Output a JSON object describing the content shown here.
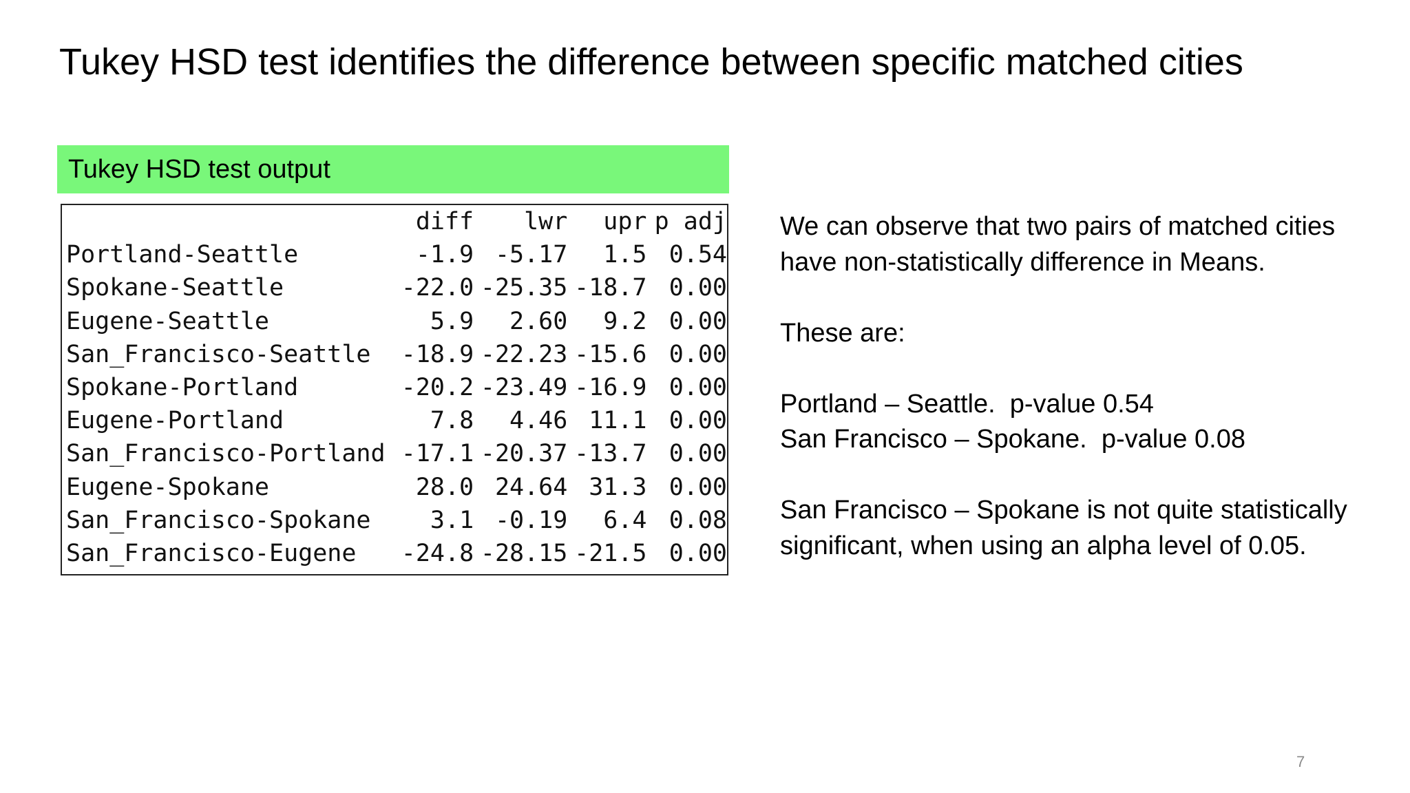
{
  "slide": {
    "title": "Tukey HSD test identifies the difference between specific matched cities",
    "page_number": "7"
  },
  "output_panel": {
    "header": "Tukey HSD test output",
    "header_color": "#79f77a",
    "columns": [
      "",
      "diff",
      "lwr",
      "upr",
      "p adj"
    ],
    "rows": [
      [
        "Portland-Seattle",
        "-1.9",
        "-5.17",
        "1.5",
        "0.54"
      ],
      [
        "Spokane-Seattle",
        "-22.0",
        "-25.35",
        "-18.7",
        "0.00"
      ],
      [
        "Eugene-Seattle",
        "5.9",
        "2.60",
        "9.2",
        "0.00"
      ],
      [
        "San_Francisco-Seattle",
        "-18.9",
        "-22.23",
        "-15.6",
        "0.00"
      ],
      [
        "Spokane-Portland",
        "-20.2",
        "-23.49",
        "-16.9",
        "0.00"
      ],
      [
        "Eugene-Portland",
        "7.8",
        "4.46",
        "11.1",
        "0.00"
      ],
      [
        "San_Francisco-Portland",
        "-17.1",
        "-20.37",
        "-13.7",
        "0.00"
      ],
      [
        "Eugene-Spokane",
        "28.0",
        "24.64",
        "31.3",
        "0.00"
      ],
      [
        "San_Francisco-Spokane",
        "3.1",
        "-0.19",
        "6.4",
        "0.08"
      ],
      [
        "San_Francisco-Eugene",
        "-24.8",
        "-28.15",
        "-21.5",
        "0.00"
      ]
    ]
  },
  "notes": {
    "p1": "We can observe that two pairs of matched cities have non-statistically difference in Means.",
    "p2": "These are:",
    "p3_line1": "Portland – Seattle.  p-value 0.54",
    "p3_line2": "San Francisco – Spokane.  p-value 0.08",
    "p4": "San Francisco – Spokane is not quite statistically significant, when using an alpha level of 0.05."
  }
}
